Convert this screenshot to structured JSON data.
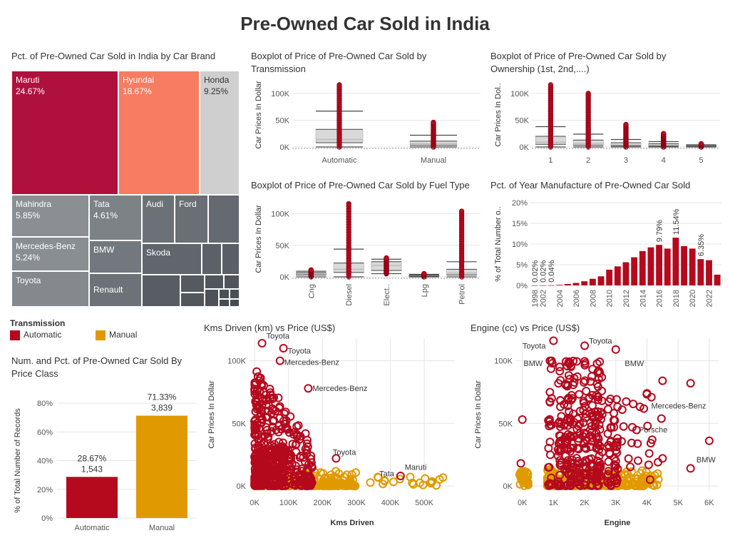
{
  "header": {
    "title": "Pre-Owned Car Sold in India"
  },
  "colors": {
    "automatic": "#b5091e",
    "manual": "#e09a00",
    "grid": "#e6e6e6",
    "box": "#cccccc"
  },
  "treemap": {
    "title": "Pct. of Pre-Owned Car Sold in India by Car Brand",
    "labeled": [
      {
        "name": "Maruti",
        "pct": "24.67%"
      },
      {
        "name": "Hyundai",
        "pct": "18.67%"
      },
      {
        "name": "Honda",
        "pct": "9.25%"
      },
      {
        "name": "Mahindra",
        "pct": "5.85%"
      },
      {
        "name": "Tata",
        "pct": "4.61%"
      },
      {
        "name": "Mercedes-Benz",
        "pct": "5.24%"
      },
      {
        "name": "BMW",
        "pct": ""
      },
      {
        "name": "Toyota",
        "pct": ""
      },
      {
        "name": "Renault",
        "pct": ""
      },
      {
        "name": "Audi",
        "pct": ""
      },
      {
        "name": "Ford",
        "pct": ""
      },
      {
        "name": "Skoda",
        "pct": ""
      }
    ]
  },
  "legend": {
    "title": "Transmission",
    "items": [
      {
        "label": "Automatic",
        "color": "#b5091e"
      },
      {
        "label": "Manual",
        "color": "#e09a00"
      }
    ]
  },
  "chart_data": [
    {
      "id": "box-transmission",
      "type": "boxplot",
      "title": "Boxplot of Price of Pre-Owned Car Sold by Transmission",
      "ylabel": "Car Prices In Dollar",
      "yticks": [
        "0K",
        "50K",
        "100K"
      ],
      "ylim": [
        0,
        120000
      ],
      "categories": [
        "Automatic",
        "Manual"
      ],
      "boxes": [
        {
          "low": 0,
          "q1": 8000,
          "median": 14000,
          "q3": 33000,
          "high": 67000,
          "max": 116000
        },
        {
          "low": 0,
          "q1": 3000,
          "median": 6000,
          "q3": 11000,
          "high": 22000,
          "max": 46000
        }
      ]
    },
    {
      "id": "box-ownership",
      "type": "boxplot",
      "title": "Boxplot of Price of Pre-Owned Car Sold by Ownership (1st, 2nd,....)",
      "ylabel": "Car Prices In Dol..",
      "yticks": [
        "0K",
        "50K",
        "100K"
      ],
      "ylim": [
        0,
        120000
      ],
      "categories": [
        "1",
        "2",
        "3",
        "4",
        "5"
      ],
      "boxes": [
        {
          "low": 0,
          "q1": 5000,
          "median": 9000,
          "q3": 20000,
          "high": 38000,
          "max": 116000
        },
        {
          "low": 0,
          "q1": 3000,
          "median": 6000,
          "q3": 13000,
          "high": 24000,
          "max": 100000
        },
        {
          "low": 0,
          "q1": 2000,
          "median": 4000,
          "q3": 8000,
          "high": 14000,
          "max": 42000
        },
        {
          "low": 0,
          "q1": 1500,
          "median": 3000,
          "q3": 6000,
          "high": 10000,
          "max": 25000
        },
        {
          "low": 0,
          "q1": 800,
          "median": 1500,
          "q3": 3000,
          "high": 4000,
          "max": 6000
        }
      ]
    },
    {
      "id": "box-fuel",
      "type": "boxplot",
      "title": "Boxplot of Price of Pre-Owned Car Sold by Fuel Type",
      "ylabel": "Car Prices In Dollar",
      "yticks": [
        "0K",
        "50K",
        "100K"
      ],
      "ylim": [
        0,
        120000
      ],
      "categories": [
        "Cng",
        "Diesel",
        "Elect..",
        "Lpg",
        "Petrol"
      ],
      "boxes": [
        {
          "low": 0,
          "q1": 3000,
          "median": 5000,
          "q3": 7000,
          "high": 9000,
          "max": 11000
        },
        {
          "low": 0,
          "q1": 7000,
          "median": 12000,
          "q3": 22000,
          "high": 44000,
          "max": 116000
        },
        {
          "low": 5000,
          "q1": 10000,
          "median": 18000,
          "q3": 24000,
          "high": 28000,
          "max": 30000
        },
        {
          "low": 0,
          "q1": 1000,
          "median": 2000,
          "q3": 3000,
          "high": 4000,
          "max": 5000
        },
        {
          "low": 0,
          "q1": 3000,
          "median": 6000,
          "q3": 12000,
          "high": 24000,
          "max": 104000
        }
      ]
    },
    {
      "id": "bar-year",
      "type": "bar",
      "title": "Pct. of Year Manufacture of Pre-Owned Car Sold",
      "ylabel": "% of Total Number o..",
      "yticks": [
        "0%",
        "5%",
        "10%",
        "15%",
        "20%"
      ],
      "ylim": [
        0,
        20
      ],
      "xticks": [
        "1998",
        "2002",
        "2004",
        "2006",
        "2008",
        "2010",
        "2012",
        "2014",
        "2016",
        "2018",
        "2020",
        "2022"
      ],
      "categories": [
        "1998",
        "2002",
        "2003",
        "2004",
        "2005",
        "2006",
        "2007",
        "2008",
        "2009",
        "2010",
        "2011",
        "2012",
        "2013",
        "2014",
        "2015",
        "2016",
        "2017",
        "2018",
        "2019",
        "2020",
        "2021",
        "2022",
        "2023"
      ],
      "values": [
        0.02,
        0.02,
        0.04,
        0.15,
        0.35,
        0.6,
        1.0,
        1.6,
        2.2,
        3.8,
        4.6,
        5.6,
        6.8,
        8.3,
        9.2,
        9.79,
        8.9,
        11.54,
        9.5,
        8.9,
        6.35,
        6.1,
        2.6
      ],
      "labels": [
        {
          "category": "1998",
          "text": "0.02%"
        },
        {
          "category": "2002",
          "text": "0.02%"
        },
        {
          "category": "2003",
          "text": "0.04%"
        },
        {
          "category": "2016",
          "text": "9.79%"
        },
        {
          "category": "2018",
          "text": "11.54%"
        },
        {
          "category": "2021",
          "text": "6.35%"
        }
      ]
    },
    {
      "id": "bar-class",
      "type": "bar",
      "title": "Num. and Pct. of Pre-Owned Car Sold By Price Class",
      "ylabel": "% of Total Number of Records",
      "yticks": [
        "0%",
        "20%",
        "40%",
        "60%",
        "80%"
      ],
      "ylim": [
        0,
        90
      ],
      "categories": [
        "Automatic",
        "Manual"
      ],
      "values": [
        28.67,
        71.33
      ],
      "pct_labels": [
        "28.67%",
        "71.33%"
      ],
      "count_labels": [
        "1,543",
        "3,839"
      ]
    },
    {
      "id": "scatter-kms",
      "type": "scatter",
      "title": "Kms Driven (km) vs Price (US$)",
      "xlabel": "Kms Driven",
      "ylabel": "Car Prices In Dollar",
      "xticks": [
        "0K",
        "100K",
        "200K",
        "300K",
        "400K",
        "500K"
      ],
      "yticks": [
        "0K",
        "50K",
        "100K"
      ],
      "xlim": [
        -15000,
        590000
      ],
      "ylim": [
        -4000,
        118000
      ],
      "annotations": [
        {
          "text": "Toyota",
          "x": 22000,
          "y": 120000
        },
        {
          "text": "Toyota",
          "x": 85000,
          "y": 108000
        },
        {
          "text": "Mercedes-Benz",
          "x": 75000,
          "y": 99000
        },
        {
          "text": "Mercedes-Benz",
          "x": 158000,
          "y": 78000
        },
        {
          "text": "Toyota",
          "x": 218000,
          "y": 27000
        },
        {
          "text": "Tata",
          "x": 355000,
          "y": 10000
        },
        {
          "text": "Maruti",
          "x": 430000,
          "y": 15000
        }
      ]
    },
    {
      "id": "scatter-engine",
      "type": "scatter",
      "title": "Engine (cc) vs Price (US$)",
      "xlabel": "Engine",
      "ylabel": "Car Prices In Dollar",
      "xticks": [
        "0K",
        "1K",
        "2K",
        "3K",
        "4K",
        "5K",
        "6K"
      ],
      "yticks": [
        "0K",
        "50K",
        "100K"
      ],
      "xlim": [
        -200,
        6300
      ],
      "ylim": [
        -4000,
        118000
      ],
      "annotations": [
        {
          "text": "Toyota",
          "x": -130,
          "y": 112000
        },
        {
          "text": "BMW",
          "x": -100,
          "y": 98000
        },
        {
          "text": "Toyota",
          "x": 2000,
          "y": 116000
        },
        {
          "text": "BMW",
          "x": 3150,
          "y": 98000
        },
        {
          "text": "Mercedes-Benz",
          "x": 4000,
          "y": 64000
        },
        {
          "text": "Porsche",
          "x": 3600,
          "y": 45000
        },
        {
          "text": "BMW",
          "x": 5450,
          "y": 21000
        }
      ]
    }
  ]
}
